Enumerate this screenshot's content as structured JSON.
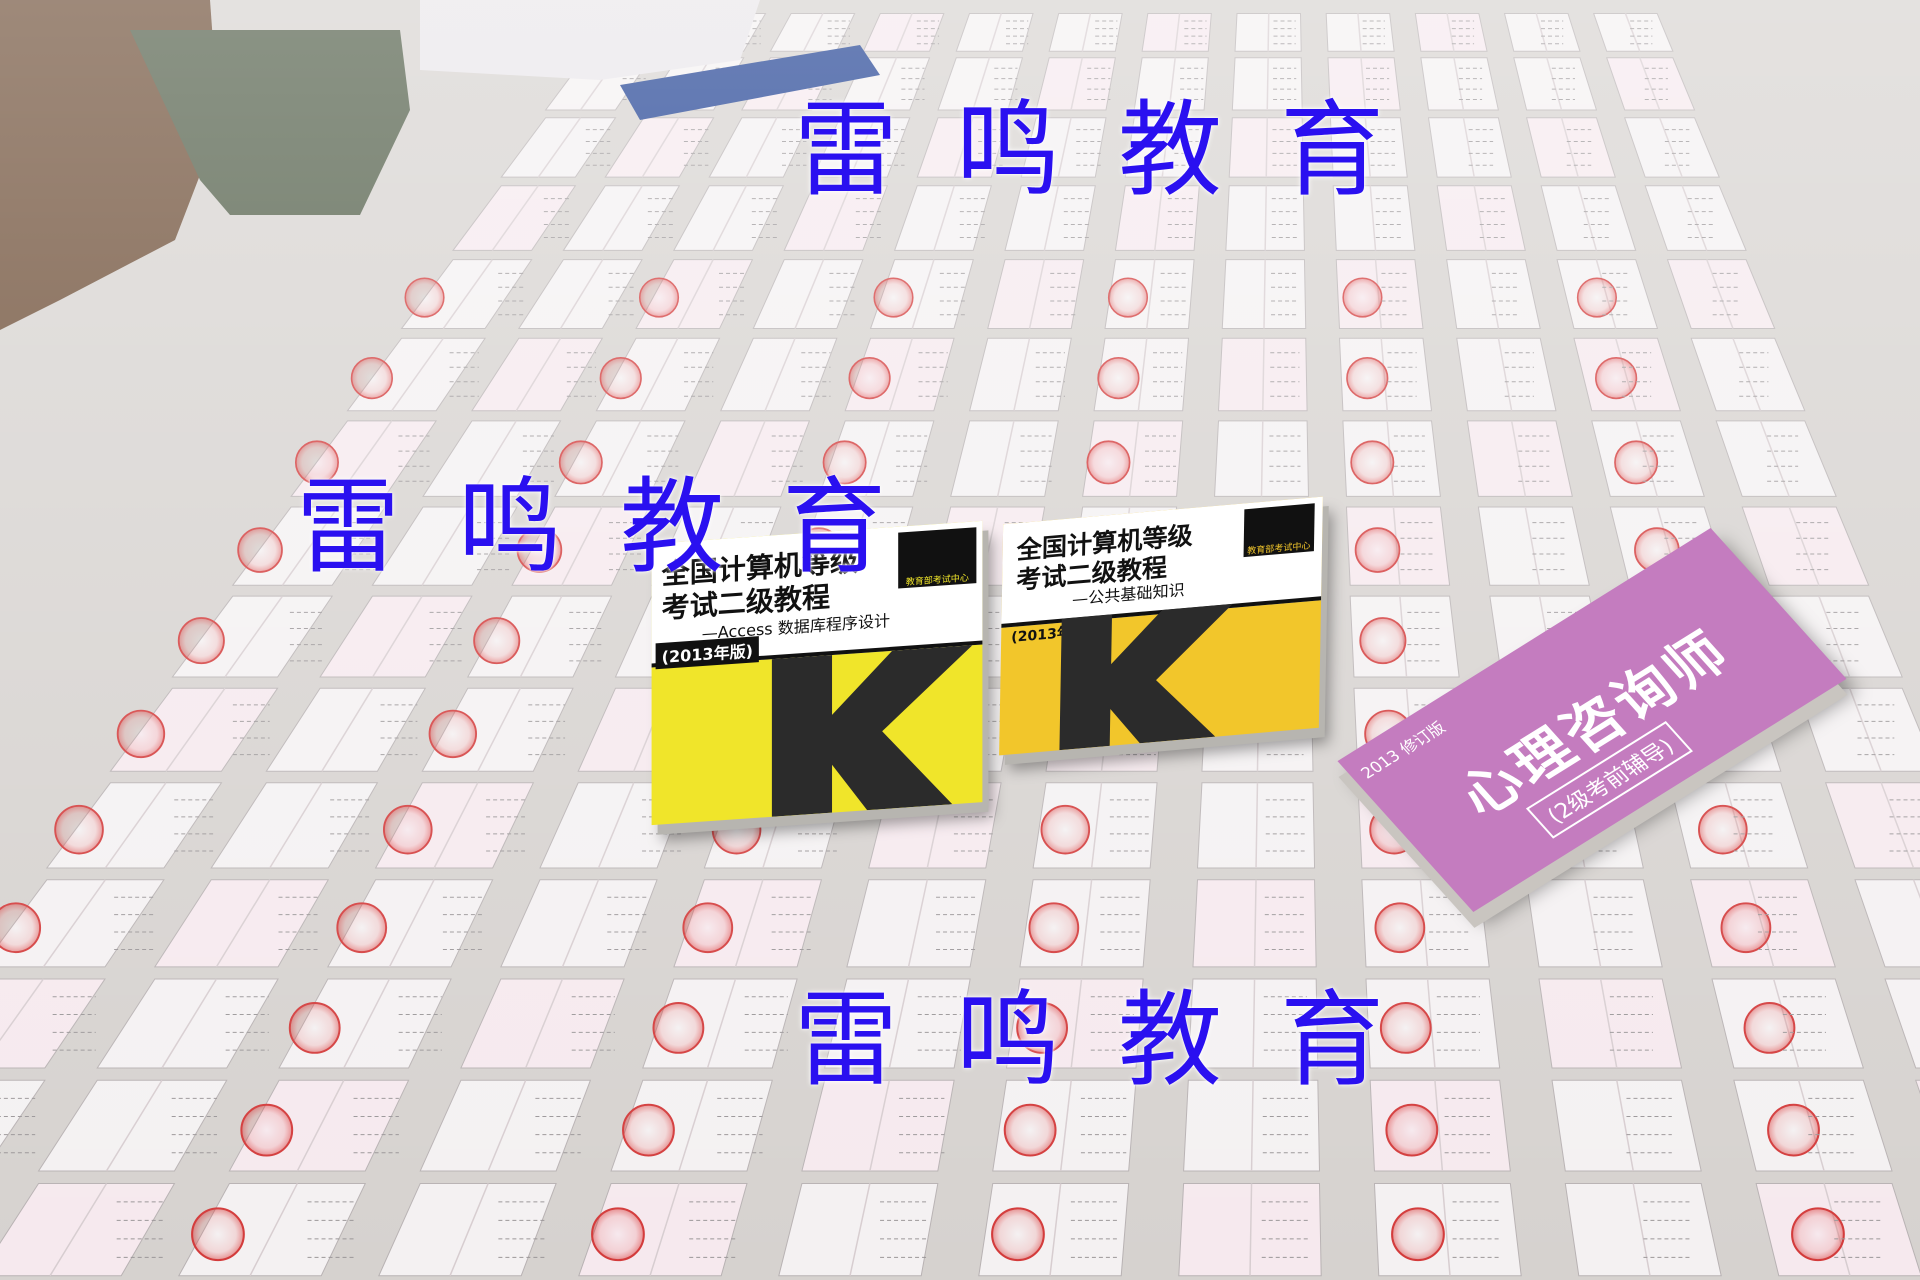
{
  "watermark": {
    "text": "雷鸣教育",
    "color": "#2a10f0"
  },
  "books": [
    {
      "title_line1": "全国计算机等级",
      "title_line2": "考试二级教程",
      "subtitle": "—Access 数据库程序设计",
      "edition": "(2013年版)",
      "badge": "教育部考试中心",
      "cover_color": "#f0e52a"
    },
    {
      "title_line1": "全国计算机等级",
      "title_line2": "考试二级教程",
      "subtitle": "—公共基础知识",
      "edition": "(2013年版)",
      "badge": "教育部考试中心",
      "cover_color": "#f2c62b"
    },
    {
      "edition": "2013 修订版",
      "title": "心理咨询师",
      "subtitle": "(2级考前辅导)",
      "cover_color": "#c47cbf"
    }
  ]
}
